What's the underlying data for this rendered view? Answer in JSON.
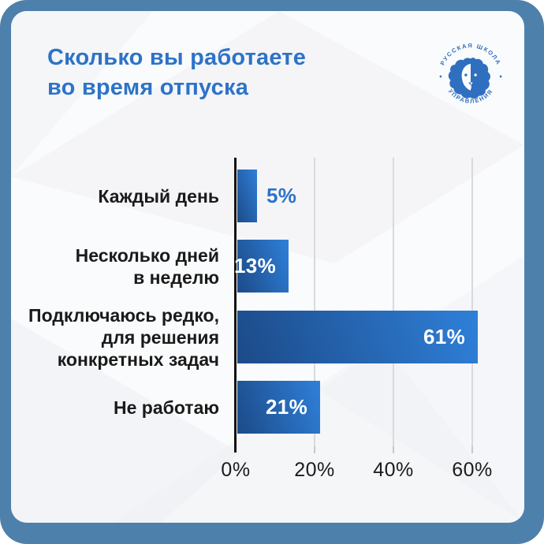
{
  "colors": {
    "frame": "#4e80ac",
    "card_bg": "#fafbfc",
    "accent": "#2d73c8",
    "bar_gradient_start": "#1c4a88",
    "bar_gradient_end": "#2f80d9",
    "logo_blue": "#2f6fc0",
    "text_dark": "#1a1a1a",
    "grid": "#d9dadc",
    "axis": "#121212",
    "value_text": "#ffffff"
  },
  "header": {
    "title_line1": "Сколько вы работаете",
    "title_line2": "во время отпуска"
  },
  "logo": {
    "top_text": "РУССКАЯ ШКОЛА",
    "bottom_text": "УПРАВЛЕНИЯ"
  },
  "chart_data": {
    "type": "bar",
    "orientation": "horizontal",
    "title": "Сколько вы работаете во время отпуска",
    "categories": [
      "Каждый день",
      "Несколько дней в неделю",
      "Подключаюсь редко, для решения конкретных задач",
      "Не работаю"
    ],
    "categories_lines": [
      [
        "Каждый день"
      ],
      [
        "Несколько дней",
        "в неделю"
      ],
      [
        "Подключаюсь редко,",
        "для решения",
        "конкретных задач"
      ],
      [
        "Не работаю"
      ]
    ],
    "values": [
      5,
      13,
      61,
      21
    ],
    "value_labels": [
      "5%",
      "13%",
      "61%",
      "21%"
    ],
    "x_ticks": [
      "0%",
      "20%",
      "40%",
      "60%"
    ],
    "x_tick_values": [
      0,
      20,
      40,
      60
    ],
    "xlim": [
      0,
      66
    ],
    "grid": true,
    "legend": false,
    "unit": "%"
  }
}
